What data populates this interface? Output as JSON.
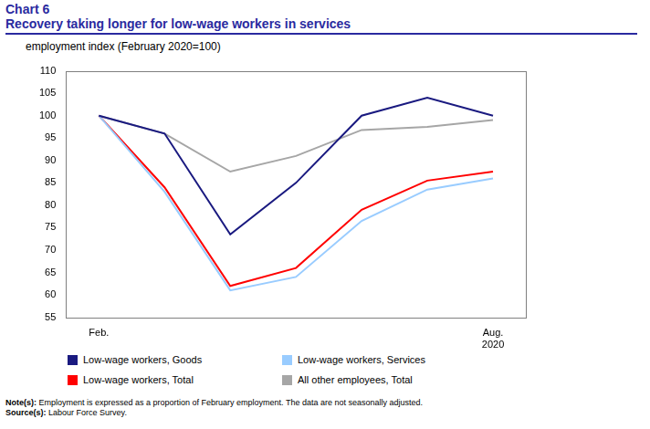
{
  "chart_data": {
    "type": "line",
    "title": "Chart 6",
    "subtitle": "Recovery taking longer for low-wage workers in services",
    "y_label": "employment index (February 2020=100)",
    "categories": [
      "Feb.",
      null,
      null,
      null,
      null,
      null,
      "Aug.\n2020"
    ],
    "series": [
      {
        "name": "Low-wage workers, Goods",
        "color": "#1a1a80",
        "values": [
          100,
          96,
          73.5,
          85,
          100,
          104,
          100
        ]
      },
      {
        "name": "Low-wage workers, Services",
        "color": "#99ccff",
        "values": [
          100,
          83,
          61,
          64,
          76.5,
          83.5,
          86
        ]
      },
      {
        "name": "Low-wage workers, Total",
        "color": "#ff0000",
        "values": [
          100,
          84,
          62,
          66,
          79,
          85.5,
          87.5
        ]
      },
      {
        "name": "All other employees, Total",
        "color": "#a6a6a6",
        "values": [
          100,
          96,
          87.5,
          91,
          96.8,
          97.5,
          99
        ]
      }
    ],
    "ylim": [
      55,
      110
    ],
    "yticks": [
      55,
      60,
      65,
      70,
      75,
      80,
      85,
      90,
      95,
      100,
      105,
      110
    ],
    "grid": false,
    "legend": "bottom",
    "notes": [
      "Note(s): Employment is expressed as a proportion of February employment. The data are not seasonally adjusted.",
      "Source(s): Labour Force Survey."
    ]
  }
}
